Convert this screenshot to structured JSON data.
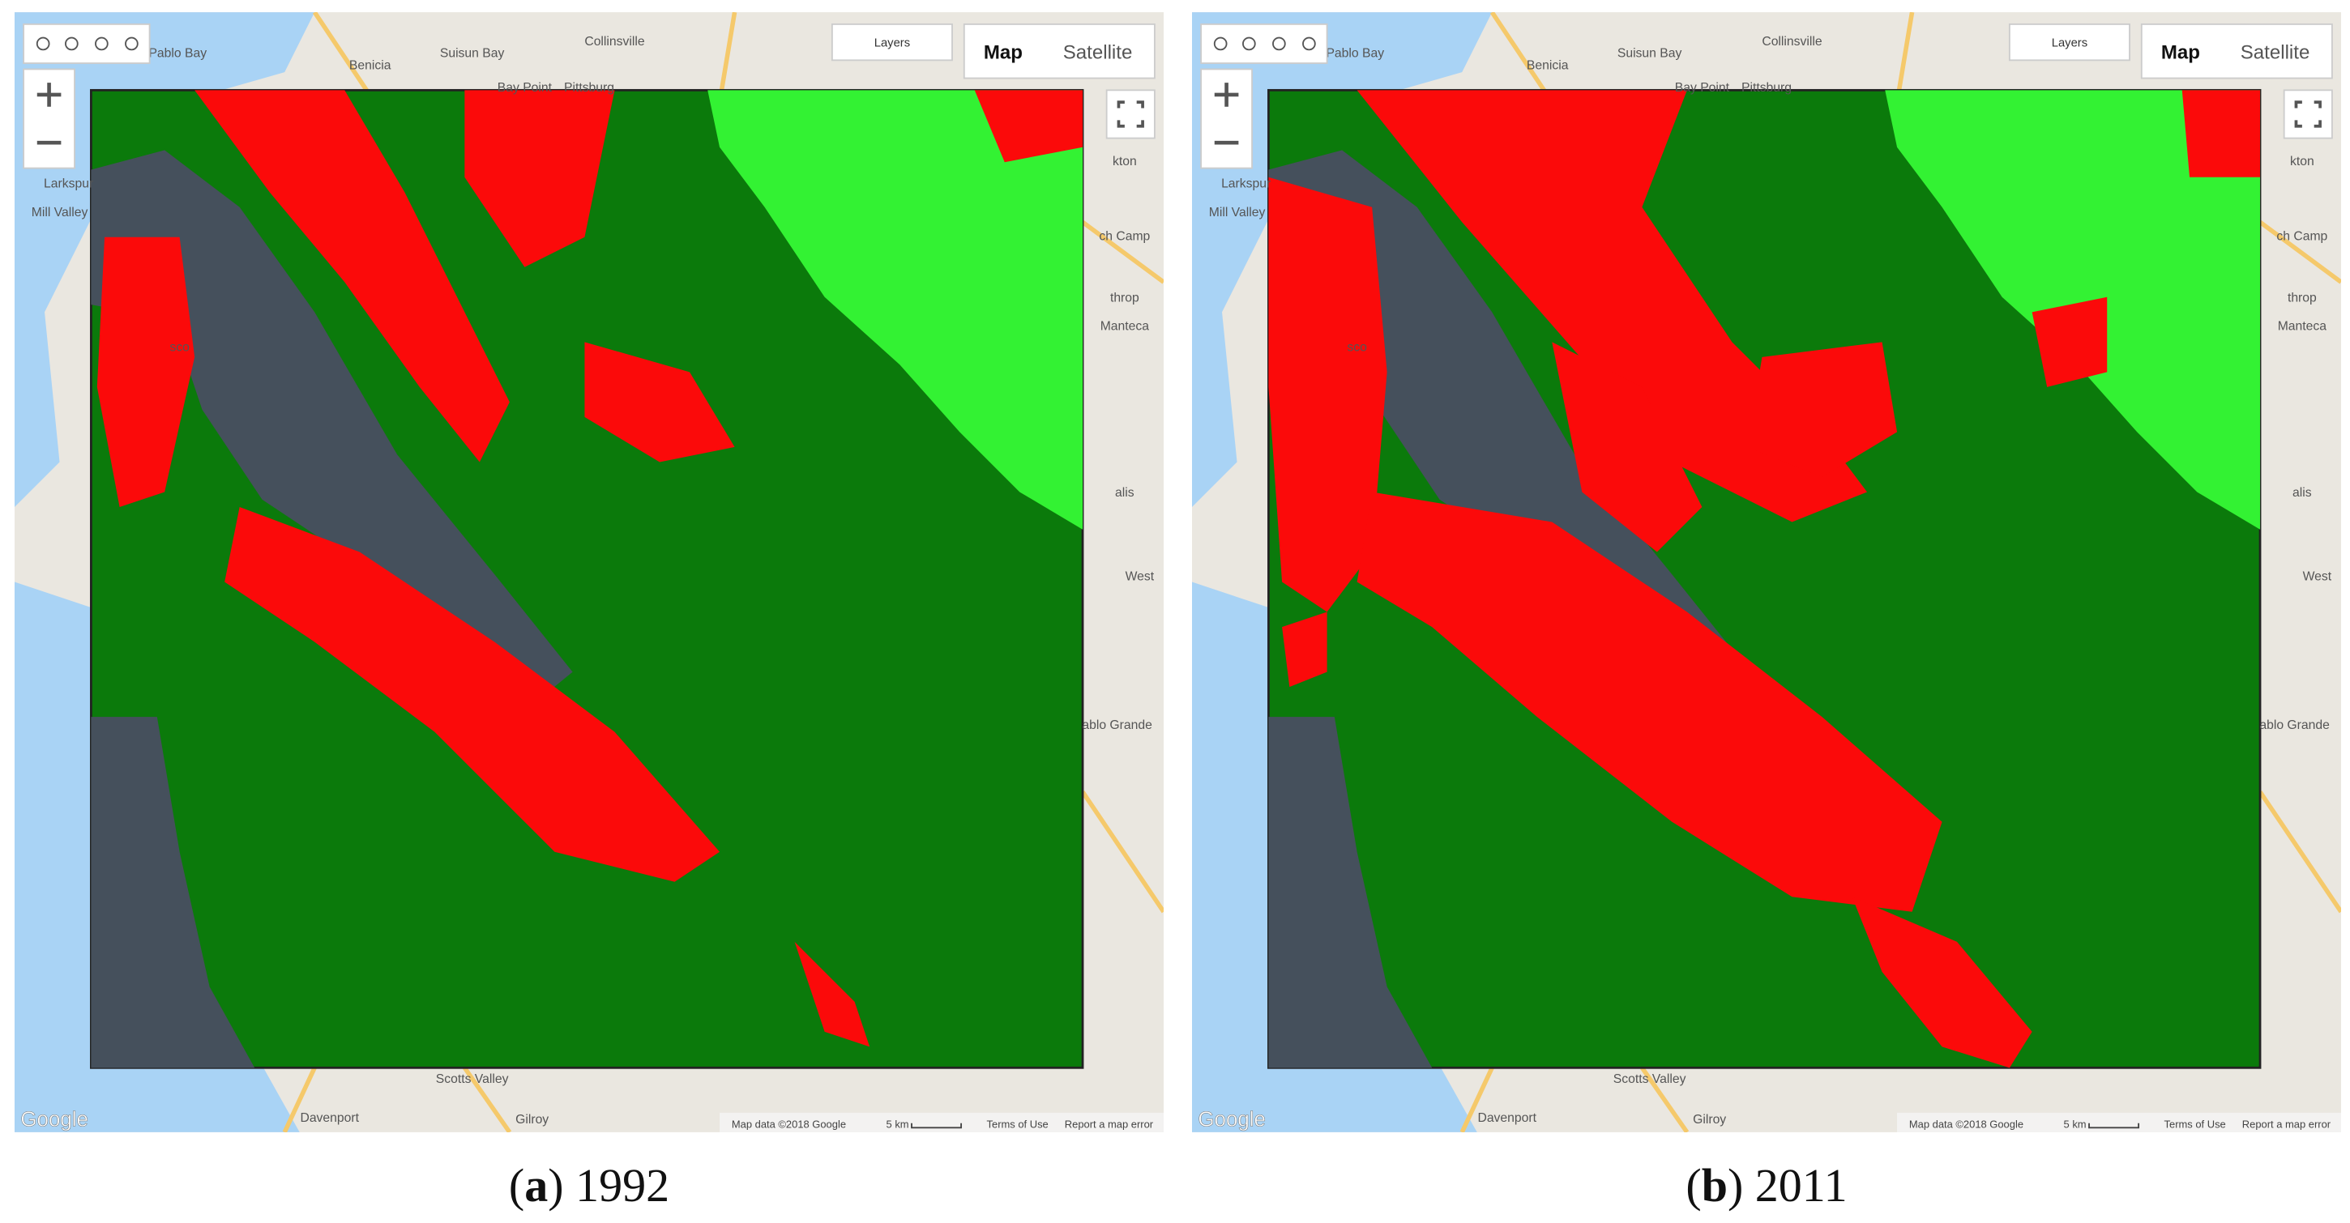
{
  "map": {
    "labels": [
      "San Pablo Bay",
      "Benicia",
      "Suisun Bay",
      "Collinsville",
      "Bay Point",
      "Pittsburg",
      "Larkspur",
      "Mill Valley",
      "sco",
      "kton",
      "ch Camp",
      "throp",
      "Manteca",
      "alis",
      "West",
      "ablo Grande",
      "Scotts Valley",
      "Davenport",
      "Gilroy"
    ],
    "layers_button": "Layers",
    "map_button": "Map",
    "satellite_button": "Satellite",
    "attribution": "Map data ©2018 Google",
    "scale": "5 km",
    "terms": "Terms of Use",
    "report": "Report a map error",
    "logo": "Google"
  },
  "panels": [
    {
      "open": "(",
      "letter": "a",
      "close": ")",
      "year": "1992"
    },
    {
      "open": "(",
      "letter": "b",
      "close": ")",
      "year": "2011"
    }
  ]
}
